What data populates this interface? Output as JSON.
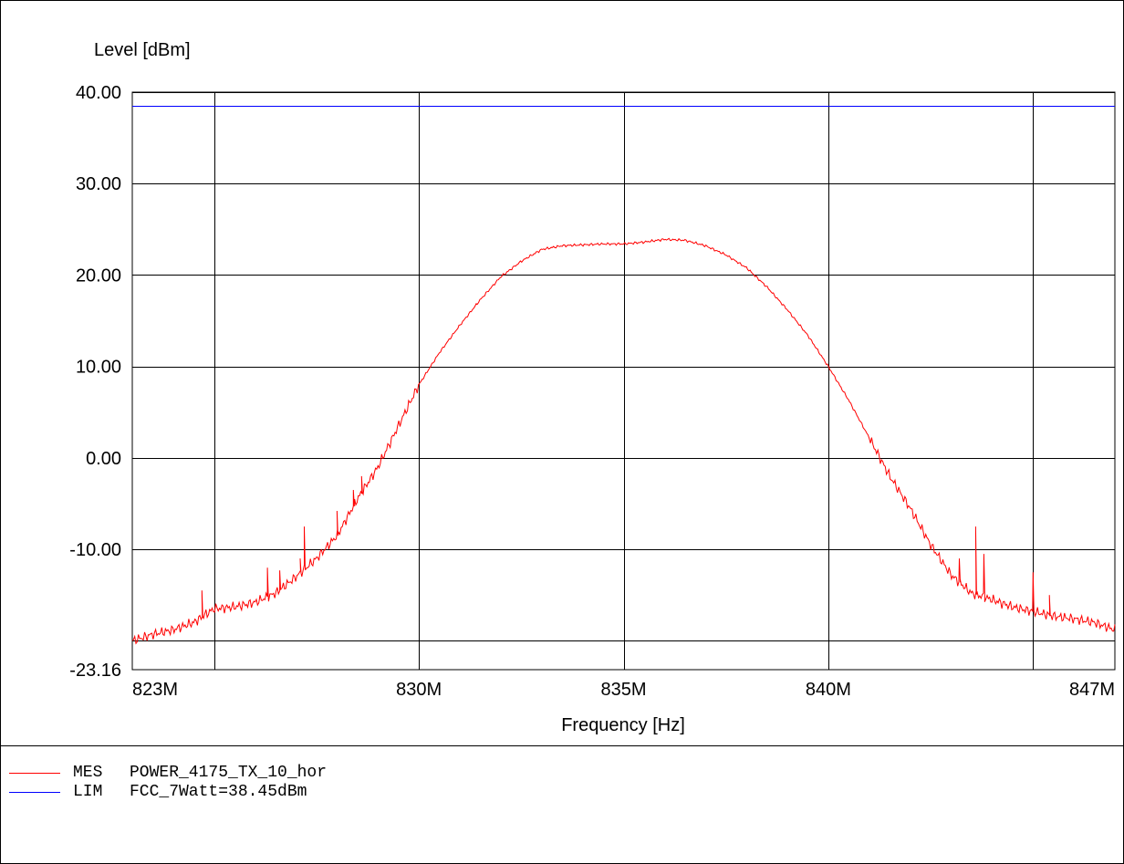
{
  "chart_data": {
    "type": "line",
    "ylabel": "Level [dBm]",
    "xlabel": "Frequency [Hz]",
    "xlim": [
      823,
      847
    ],
    "ylim": [
      -23.16,
      40
    ],
    "x_unit_suffix": "M",
    "x_ticks": [
      {
        "value": 823,
        "label": "823M"
      },
      {
        "value": 830,
        "label": "830M"
      },
      {
        "value": 835,
        "label": "835M"
      },
      {
        "value": 840,
        "label": "840M"
      },
      {
        "value": 847,
        "label": "847M"
      }
    ],
    "x_gridlines": [
      825,
      830,
      835,
      840,
      845
    ],
    "y_ticks": [
      {
        "value": 40,
        "label": "40.00"
      },
      {
        "value": 30,
        "label": "30.00"
      },
      {
        "value": 20,
        "label": "20.00"
      },
      {
        "value": 10,
        "label": "10.00"
      },
      {
        "value": 0,
        "label": "0.00"
      },
      {
        "value": -10,
        "label": "-10.00"
      },
      {
        "value": -23.16,
        "label": "-23.16"
      }
    ],
    "y_gridlines": [
      40,
      30,
      20,
      10,
      0,
      -10,
      -20
    ],
    "grid": true,
    "series": [
      {
        "name": "MES",
        "color": "#ff0000",
        "x": [
          823.0,
          823.5,
          824.0,
          824.5,
          825.0,
          825.5,
          826.0,
          826.5,
          827.0,
          827.5,
          828.0,
          828.5,
          829.0,
          829.5,
          830.0,
          830.5,
          831.0,
          831.5,
          832.0,
          832.5,
          833.0,
          833.5,
          834.0,
          834.5,
          835.0,
          835.5,
          836.0,
          836.5,
          837.0,
          837.5,
          838.0,
          838.5,
          839.0,
          839.5,
          840.0,
          840.5,
          841.0,
          841.5,
          842.0,
          842.5,
          843.0,
          843.5,
          844.0,
          844.5,
          845.0,
          845.5,
          846.0,
          846.5,
          847.0
        ],
        "y": [
          -20.0,
          -19.3,
          -18.8,
          -18.0,
          -16.5,
          -16.3,
          -15.8,
          -14.8,
          -13.0,
          -11.0,
          -8.5,
          -4.5,
          -1.0,
          3.5,
          8.0,
          11.5,
          14.5,
          17.3,
          19.8,
          21.5,
          22.8,
          23.2,
          23.3,
          23.4,
          23.4,
          23.6,
          23.9,
          23.8,
          23.2,
          22.2,
          20.8,
          18.7,
          16.2,
          13.4,
          10.0,
          6.3,
          2.2,
          -2.0,
          -5.5,
          -9.5,
          -12.8,
          -14.8,
          -15.5,
          -16.3,
          -16.8,
          -17.3,
          -17.6,
          -18.0,
          -18.8
        ],
        "spikes": [
          {
            "x": 824.7,
            "y": -14.5
          },
          {
            "x": 826.3,
            "y": -12.0
          },
          {
            "x": 826.6,
            "y": -12.3
          },
          {
            "x": 827.1,
            "y": -11.0
          },
          {
            "x": 827.2,
            "y": -7.5
          },
          {
            "x": 828.0,
            "y": -5.8
          },
          {
            "x": 828.4,
            "y": -3.5
          },
          {
            "x": 828.6,
            "y": -2.0
          },
          {
            "x": 843.2,
            "y": -11.0
          },
          {
            "x": 843.6,
            "y": -7.5
          },
          {
            "x": 843.8,
            "y": -10.5
          },
          {
            "x": 845.0,
            "y": -12.5
          },
          {
            "x": 845.4,
            "y": -15.0
          }
        ]
      },
      {
        "name": "LIM",
        "color": "#0000ff",
        "x": [
          823,
          847
        ],
        "y": [
          38.45,
          38.45
        ]
      }
    ],
    "legend_position": "bottom-left"
  },
  "legend": [
    {
      "code": "MES",
      "text": "POWER_4175_TX_10_hor",
      "color": "#ff0000"
    },
    {
      "code": "LIM",
      "text": "FCC_7Watt=38.45dBm",
      "color": "#0000ff"
    }
  ]
}
